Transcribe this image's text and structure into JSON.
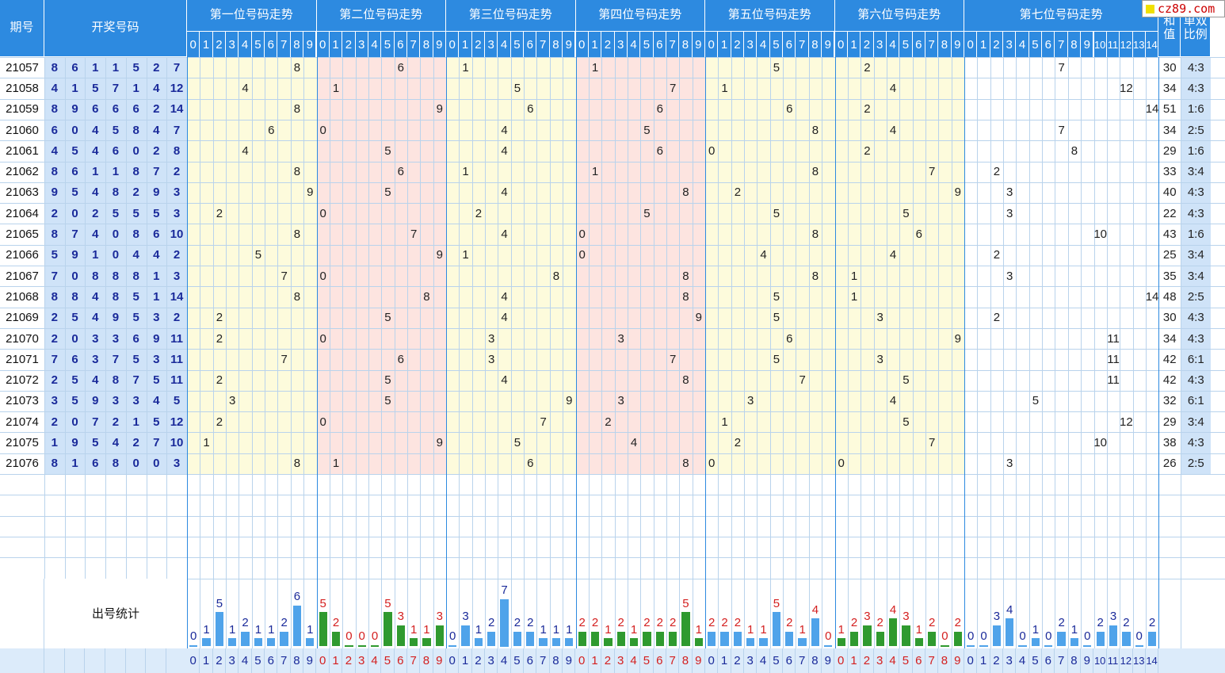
{
  "header": {
    "issue_label": "期号",
    "draw_label": "开奖号码",
    "positions": [
      "第一位号码走势",
      "第二位号码走势",
      "第三位号码走势",
      "第四位号码走势",
      "第五位号码走势",
      "第六位号码走势",
      "第七位号码走势"
    ],
    "sum_label": "和值",
    "ratio_label": "单双比例",
    "digits_0_9": [
      "0",
      "1",
      "2",
      "3",
      "4",
      "5",
      "6",
      "7",
      "8",
      "9"
    ],
    "digits_0_14": [
      "0",
      "1",
      "2",
      "3",
      "4",
      "5",
      "6",
      "7",
      "8",
      "9",
      "10",
      "11",
      "12",
      "13",
      "14"
    ]
  },
  "logo": {
    "text": "cz89.com",
    "accent": "#f0e000",
    "text_color": "#cc0000"
  },
  "stats_label": "出号统计",
  "colors": {
    "header_bg": "#2d8ae0",
    "yellow_zone": "#fdfbdc",
    "pink_zone": "#fde4e0",
    "left_blue": "#cfe3f8",
    "grid_line": "#b9d3ec",
    "bar_blue": "#4fa3ea",
    "bar_green": "#2f9a2f",
    "label_blue": "#1a2a9a",
    "label_red": "#d42020"
  },
  "draws": [
    {
      "issue": "21057",
      "nums": [
        "8",
        "6",
        "1",
        "1",
        "5",
        "2",
        "7"
      ],
      "sum": "30",
      "ratio": "4:3"
    },
    {
      "issue": "21058",
      "nums": [
        "4",
        "1",
        "5",
        "7",
        "1",
        "4",
        "12"
      ],
      "sum": "34",
      "ratio": "4:3"
    },
    {
      "issue": "21059",
      "nums": [
        "8",
        "9",
        "6",
        "6",
        "6",
        "2",
        "14"
      ],
      "sum": "51",
      "ratio": "1:6"
    },
    {
      "issue": "21060",
      "nums": [
        "6",
        "0",
        "4",
        "5",
        "8",
        "4",
        "7"
      ],
      "sum": "34",
      "ratio": "2:5"
    },
    {
      "issue": "21061",
      "nums": [
        "4",
        "5",
        "4",
        "6",
        "0",
        "2",
        "8"
      ],
      "sum": "29",
      "ratio": "1:6"
    },
    {
      "issue": "21062",
      "nums": [
        "8",
        "6",
        "1",
        "1",
        "8",
        "7",
        "2"
      ],
      "sum": "33",
      "ratio": "3:4"
    },
    {
      "issue": "21063",
      "nums": [
        "9",
        "5",
        "4",
        "8",
        "2",
        "9",
        "3"
      ],
      "sum": "40",
      "ratio": "4:3"
    },
    {
      "issue": "21064",
      "nums": [
        "2",
        "0",
        "2",
        "5",
        "5",
        "5",
        "3"
      ],
      "sum": "22",
      "ratio": "4:3"
    },
    {
      "issue": "21065",
      "nums": [
        "8",
        "7",
        "4",
        "0",
        "8",
        "6",
        "10"
      ],
      "sum": "43",
      "ratio": "1:6"
    },
    {
      "issue": "21066",
      "nums": [
        "5",
        "9",
        "1",
        "0",
        "4",
        "4",
        "2"
      ],
      "sum": "25",
      "ratio": "3:4"
    },
    {
      "issue": "21067",
      "nums": [
        "7",
        "0",
        "8",
        "8",
        "8",
        "1",
        "3"
      ],
      "sum": "35",
      "ratio": "3:4"
    },
    {
      "issue": "21068",
      "nums": [
        "8",
        "8",
        "4",
        "8",
        "5",
        "1",
        "14"
      ],
      "sum": "48",
      "ratio": "2:5"
    },
    {
      "issue": "21069",
      "nums": [
        "2",
        "5",
        "4",
        "9",
        "5",
        "3",
        "2"
      ],
      "sum": "30",
      "ratio": "4:3"
    },
    {
      "issue": "21070",
      "nums": [
        "2",
        "0",
        "3",
        "3",
        "6",
        "9",
        "11"
      ],
      "sum": "34",
      "ratio": "4:3"
    },
    {
      "issue": "21071",
      "nums": [
        "7",
        "6",
        "3",
        "7",
        "5",
        "3",
        "11"
      ],
      "sum": "42",
      "ratio": "6:1"
    },
    {
      "issue": "21072",
      "nums": [
        "2",
        "5",
        "4",
        "8",
        "7",
        "5",
        "11"
      ],
      "sum": "42",
      "ratio": "4:3"
    },
    {
      "issue": "21073",
      "nums": [
        "3",
        "5",
        "9",
        "3",
        "3",
        "4",
        "5"
      ],
      "sum": "32",
      "ratio": "6:1"
    },
    {
      "issue": "21074",
      "nums": [
        "2",
        "0",
        "7",
        "2",
        "1",
        "5",
        "12"
      ],
      "sum": "29",
      "ratio": "3:4"
    },
    {
      "issue": "21075",
      "nums": [
        "1",
        "9",
        "5",
        "4",
        "2",
        "7",
        "10"
      ],
      "sum": "38",
      "ratio": "4:3"
    },
    {
      "issue": "21076",
      "nums": [
        "8",
        "1",
        "6",
        "8",
        "0",
        "0",
        "3"
      ],
      "sum": "26",
      "ratio": "2:5"
    }
  ],
  "stats": [
    [
      0,
      1,
      5,
      1,
      2,
      1,
      1,
      2,
      6,
      1
    ],
    [
      5,
      2,
      0,
      0,
      0,
      5,
      3,
      1,
      1,
      3
    ],
    [
      0,
      3,
      1,
      2,
      7,
      2,
      2,
      1,
      1,
      1
    ],
    [
      2,
      2,
      1,
      2,
      1,
      2,
      2,
      2,
      5,
      1
    ],
    [
      2,
      2,
      2,
      1,
      1,
      5,
      2,
      1,
      4,
      0
    ],
    [
      1,
      2,
      3,
      2,
      4,
      3,
      1,
      2,
      0,
      2
    ],
    [
      0,
      0,
      3,
      4,
      0,
      1,
      0,
      2,
      1,
      0,
      2,
      3,
      2,
      0,
      2
    ]
  ]
}
